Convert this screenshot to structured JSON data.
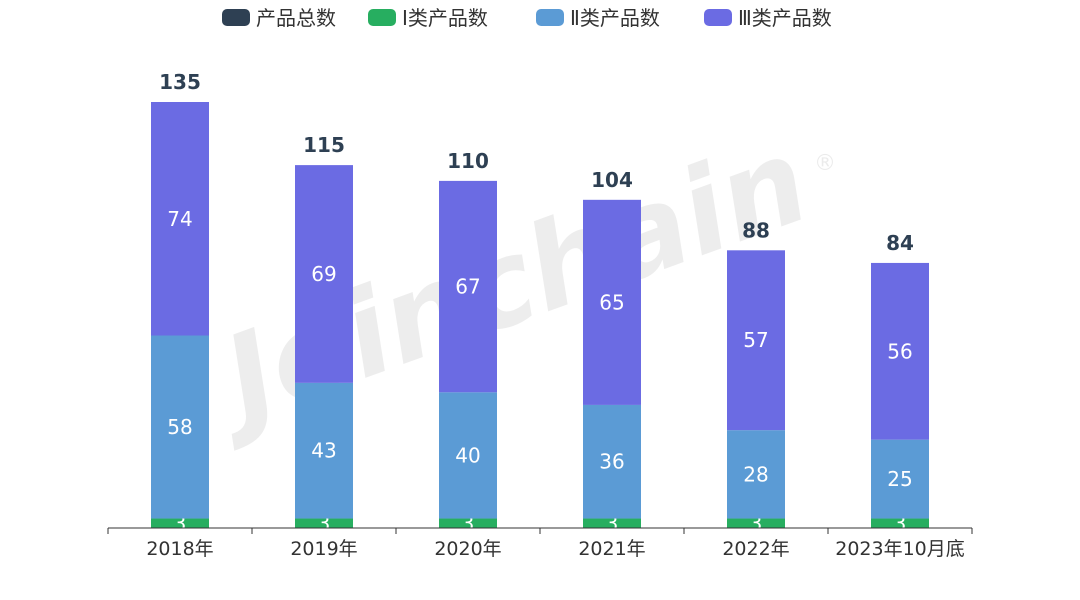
{
  "watermark": {
    "text": "Joinchain",
    "mark": "®"
  },
  "chart_data": {
    "type": "bar",
    "stacked": true,
    "categories": [
      "2018年",
      "2019年",
      "2020年",
      "2021年",
      "2022年",
      "2023年10月底"
    ],
    "series": [
      {
        "name": "Ⅰ类产品数",
        "values": [
          3,
          3,
          3,
          3,
          3,
          3
        ],
        "color": "#27ae60"
      },
      {
        "name": "Ⅱ类产品数",
        "values": [
          58,
          43,
          40,
          36,
          28,
          25
        ],
        "color": "#5b9bd5"
      },
      {
        "name": "Ⅲ类产品数",
        "values": [
          74,
          69,
          67,
          65,
          57,
          56
        ],
        "color": "#6b6be3"
      }
    ],
    "totals": {
      "name": "产品总数",
      "values": [
        135,
        115,
        110,
        104,
        88,
        84
      ],
      "color": "#2e4053"
    },
    "legend_position": "top-center",
    "ylim": [
      0,
      140
    ],
    "grid": false,
    "title": "",
    "xlabel": "",
    "ylabel": ""
  }
}
